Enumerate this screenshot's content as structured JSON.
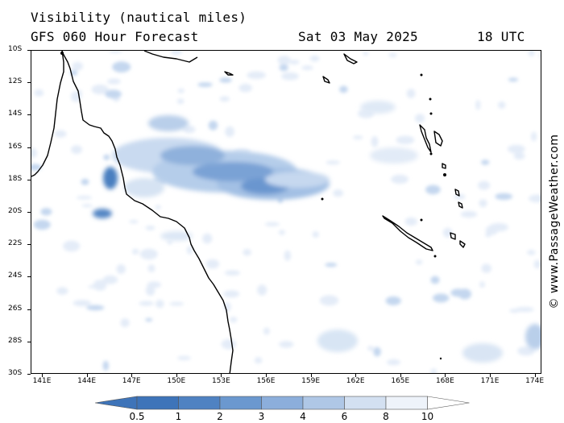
{
  "header": {
    "title": "Visibility (nautical miles)",
    "model_line": "GFS 060 Hour Forecast",
    "date": "Sat 03 May 2025",
    "time": "18 UTC"
  },
  "credit": "© www.PassageWeather.com",
  "axes": {
    "lat_labels": [
      "10S",
      "12S",
      "14S",
      "16S",
      "18S",
      "20S",
      "22S",
      "24S",
      "26S",
      "28S",
      "30S"
    ],
    "lon_labels": [
      "141E",
      "144E",
      "147E",
      "150E",
      "153E",
      "156E",
      "159E",
      "162E",
      "165E",
      "168E",
      "171E",
      "174E"
    ]
  },
  "colorbar": {
    "labels": [
      "0.5",
      "1",
      "2",
      "3",
      "4",
      "6",
      "8",
      "10"
    ],
    "colors": [
      "#3e74b9",
      "#4f82c2",
      "#6b98cf",
      "#8caedb",
      "#afc7e6",
      "#d3e0f1",
      "#eef3fa"
    ]
  },
  "colors": {
    "coast": "#000000",
    "low_vis_dark": "#4a7fc0",
    "low_vis_mid": "#8fb1dc",
    "low_vis_light": "#dce7f5"
  }
}
